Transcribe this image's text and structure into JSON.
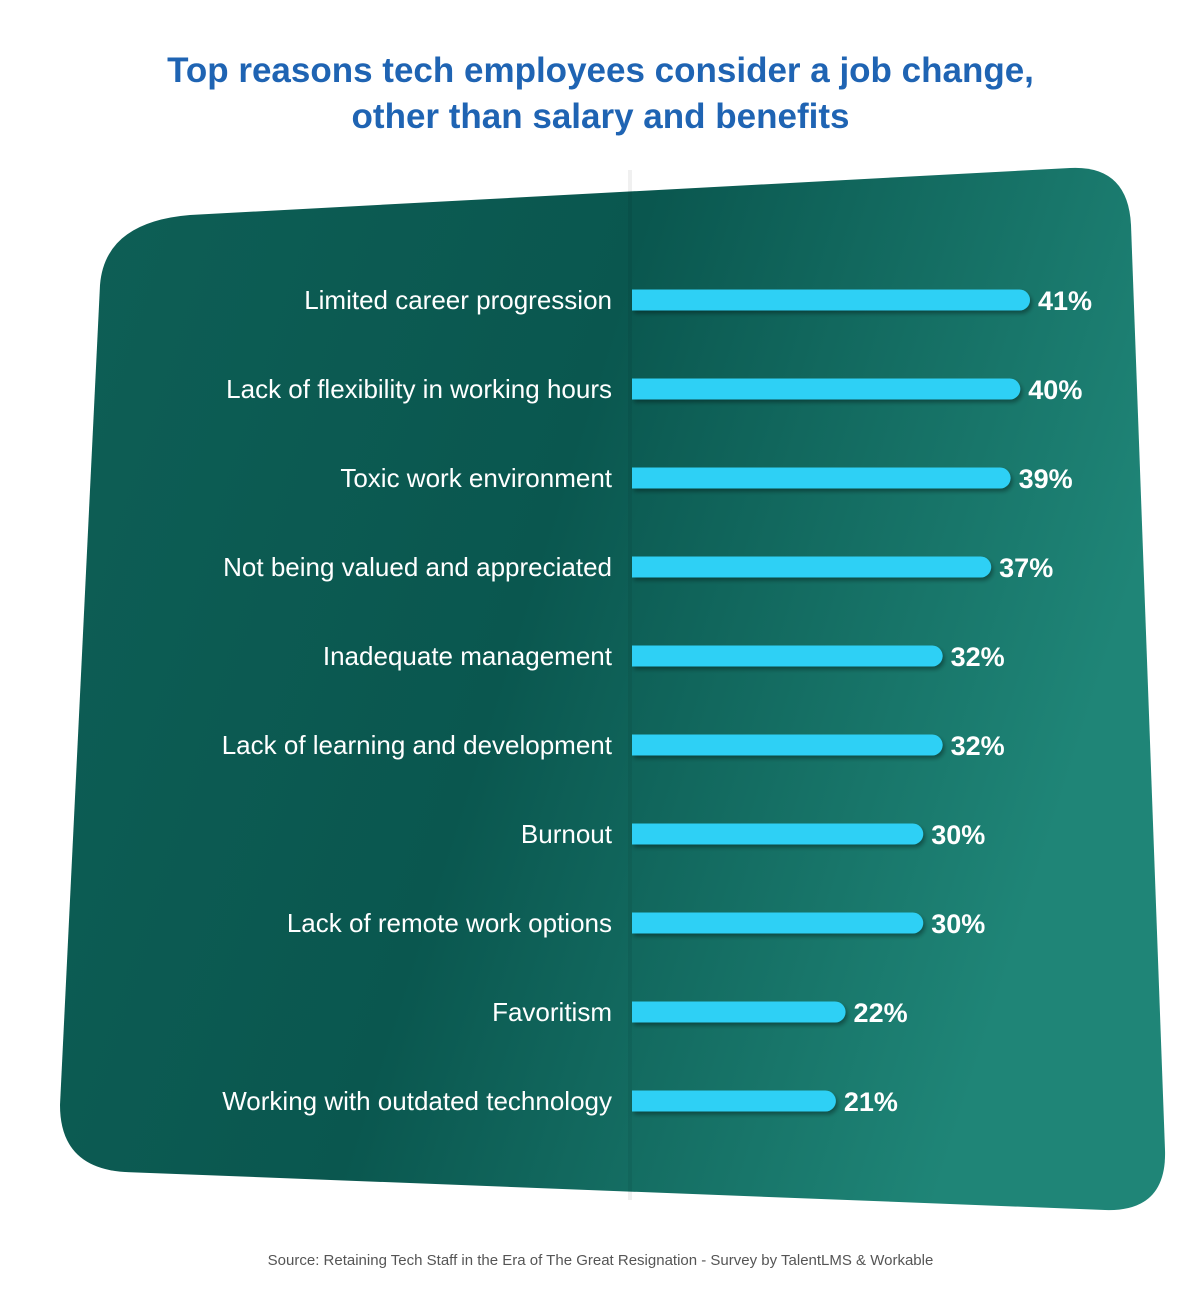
{
  "chart_data": {
    "type": "bar",
    "orientation": "horizontal",
    "title": [
      "Top reasons tech employees consider a job change,",
      "other than salary and benefits"
    ],
    "categories": [
      "Limited career progression",
      "Lack of flexibility in working hours",
      "Toxic work environment",
      "Not being valued and appreciated",
      "Inadequate management",
      "Lack of learning and development",
      "Burnout",
      "Lack of remote work options",
      "Favoritism",
      "Working with outdated technology"
    ],
    "values": [
      41,
      40,
      39,
      37,
      32,
      32,
      30,
      30,
      22,
      21
    ],
    "value_suffix": "%",
    "xlim": [
      0,
      41
    ],
    "grid": false,
    "legend": "none"
  },
  "colors": {
    "title": "#1f64b3",
    "bar": "#2dd0f5",
    "card_dark": "#0b5a52",
    "card_light": "#1f8577",
    "label_text": "#ffffff"
  },
  "source": "Source: Retaining Tech Staff in the Era of The Great Resignation - Survey by TalentLMS & Workable"
}
